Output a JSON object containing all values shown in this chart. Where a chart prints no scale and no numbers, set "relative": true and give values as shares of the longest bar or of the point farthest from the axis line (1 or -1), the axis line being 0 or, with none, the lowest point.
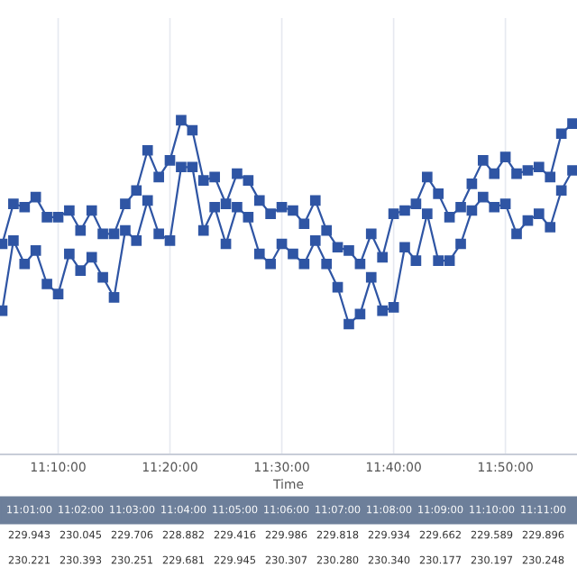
{
  "chart_data": {
    "type": "line",
    "xlabel": "Time",
    "relative": true,
    "marker": "square",
    "line_style": "solid",
    "grid": "x",
    "legend": false,
    "x": [
      11.0833,
      11.1,
      11.1167,
      11.1333,
      11.15,
      11.1667,
      11.1833,
      11.2,
      11.2167,
      11.2333,
      11.25,
      11.2667,
      11.2833,
      11.3,
      11.3167,
      11.3333,
      11.35,
      11.3667,
      11.3833,
      11.4,
      11.4167,
      11.4333,
      11.45,
      11.4667,
      11.4833,
      11.5,
      11.5167,
      11.5333,
      11.55,
      11.5667,
      11.5833,
      11.6,
      11.6167,
      11.6333,
      11.65,
      11.6667,
      11.6833,
      11.7,
      11.7167,
      11.7333,
      11.75,
      11.7667,
      11.7833,
      11.8,
      11.8167,
      11.8333,
      11.85,
      11.8667,
      11.8833,
      11.9,
      11.9167,
      11.9333
    ],
    "xlim": [
      11.08,
      11.94
    ],
    "xticks": [
      {
        "value": 11.1667,
        "label": "11:10:00"
      },
      {
        "value": 11.3333,
        "label": "11:20:00"
      },
      {
        "value": 11.5,
        "label": "11:30:00"
      },
      {
        "value": 11.6667,
        "label": "11:40:00"
      },
      {
        "value": 11.8333,
        "label": "11:50:00"
      }
    ],
    "series": [
      {
        "color": "#2f55a4",
        "values": [
          0.63,
          0.75,
          0.74,
          0.77,
          0.71,
          0.71,
          0.73,
          0.67,
          0.73,
          0.66,
          0.66,
          0.75,
          0.79,
          0.91,
          0.83,
          0.88,
          1.0,
          0.97,
          0.82,
          0.83,
          0.75,
          0.84,
          0.82,
          0.76,
          0.72,
          0.74,
          0.73,
          0.69,
          0.76,
          0.67,
          0.62,
          0.61,
          0.57,
          0.66,
          0.59,
          0.72,
          0.73,
          0.75,
          0.83,
          0.78,
          0.71,
          0.74,
          0.81,
          0.88,
          0.84,
          0.89,
          0.84,
          0.85,
          0.86,
          0.83,
          0.96,
          0.99
        ]
      },
      {
        "color": "#2f55a4",
        "values": [
          0.43,
          0.64,
          0.57,
          0.61,
          0.51,
          0.48,
          0.6,
          0.55,
          0.59,
          0.53,
          0.47,
          0.67,
          0.64,
          0.76,
          0.66,
          0.64,
          0.86,
          0.86,
          0.67,
          0.74,
          0.63,
          0.74,
          0.71,
          0.6,
          0.57,
          0.63,
          0.6,
          0.57,
          0.64,
          0.57,
          0.5,
          0.39,
          0.42,
          0.53,
          0.43,
          0.44,
          0.62,
          0.58,
          0.72,
          0.58,
          0.58,
          0.63,
          0.73,
          0.77,
          0.74,
          0.75,
          0.66,
          0.7,
          0.72,
          0.68,
          0.79,
          0.85
        ]
      }
    ],
    "annotations": [
      "11:01:00 11:02:00 11:03:00 11:04:00 11:05:00 11:06:00 11:07:00 11:08:00 11:09:00 11:10:00 11:11:00",
      "229.943 230.045 229.706 228.882 229.416 229.986 229.818 229.934 229.662 229.589 229.896",
      "230.221 230.393 230.251 229.681 229.945 230.307 230.280 230.340 230.177 230.197 230.248"
    ]
  }
}
